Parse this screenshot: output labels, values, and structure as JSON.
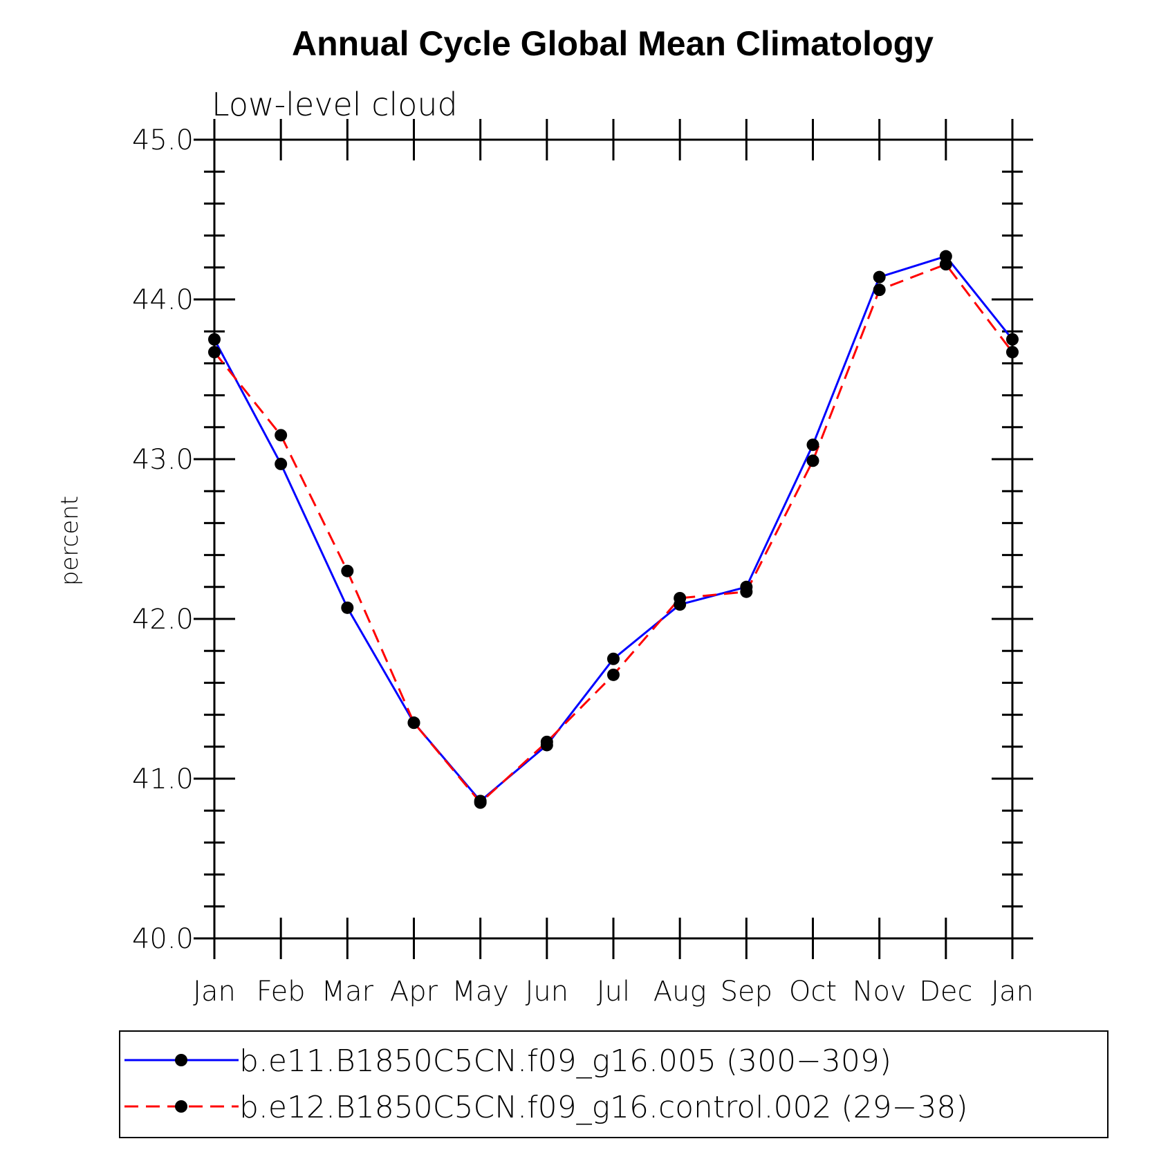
{
  "chart_data": {
    "type": "line",
    "title": "Annual Cycle Global Mean Climatology",
    "subtitle": "Low-level cloud",
    "xlabel": "",
    "ylabel": "percent",
    "ylim": [
      40.0,
      45.0
    ],
    "yticks": [
      "40.0",
      "41.0",
      "42.0",
      "43.0",
      "44.0",
      "45.0"
    ],
    "categories": [
      "Jan",
      "Feb",
      "Mar",
      "Apr",
      "May",
      "Jun",
      "Jul",
      "Aug",
      "Sep",
      "Oct",
      "Nov",
      "Dec",
      "Jan"
    ],
    "series": [
      {
        "name": "b.e11.B1850C5CN.f09_g16.005 (300−309)",
        "color": "#0000ff",
        "style": "solid",
        "values": [
          43.75,
          42.97,
          42.07,
          41.35,
          40.86,
          41.21,
          41.75,
          42.09,
          42.2,
          43.09,
          44.14,
          44.27,
          43.75
        ]
      },
      {
        "name": "b.e12.B1850C5CN.f09_g16.control.002 (29−38)",
        "color": "#ff0000",
        "style": "dashed",
        "values": [
          43.67,
          43.15,
          42.3,
          41.35,
          40.85,
          41.23,
          41.65,
          42.13,
          42.17,
          42.99,
          44.06,
          44.22,
          43.67
        ]
      }
    ],
    "marker": "filled-circle",
    "marker_color": "#000000",
    "legend_position": "bottom"
  }
}
